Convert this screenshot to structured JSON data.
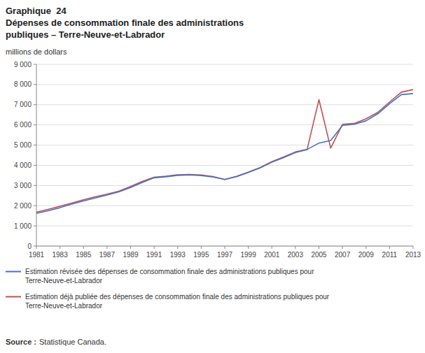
{
  "chart_data": {
    "type": "line",
    "title": "Graphique  24",
    "subtitle": "Dépenses de consommation finale des administrations\npubliques – Terre-Neuve-et-Labrador",
    "y_label": "millions de dollars",
    "annotations": [
      "Source :",
      "Statistique Canada."
    ],
    "x": [
      1981,
      1982,
      1983,
      1984,
      1985,
      1986,
      1987,
      1988,
      1989,
      1990,
      1991,
      1992,
      1993,
      1994,
      1995,
      1996,
      1997,
      1998,
      1999,
      2000,
      2001,
      2002,
      2003,
      2004,
      2005,
      2006,
      2007,
      2008,
      2009,
      2010,
      2011,
      2012,
      2013
    ],
    "series": [
      {
        "name": "Estimation révisée des dépenses de consommation finale des administrations publiques pour\nTerre-Neuve-et-Labrador",
        "color": "#4472C4",
        "values": [
          1620,
          1750,
          1900,
          2080,
          2230,
          2380,
          2530,
          2680,
          2900,
          3150,
          3380,
          3430,
          3500,
          3520,
          3490,
          3420,
          3300,
          3440,
          3640,
          3870,
          4150,
          4380,
          4630,
          4780,
          5100,
          5230,
          5970,
          6030,
          6200,
          6550,
          7050,
          7500,
          7550
        ]
      },
      {
        "name": "Estimation déjà publiée des dépenses de consommation finale des administrations publiques pour\nTerre-Neuve-et-Labrador",
        "color": "#C0504D",
        "values": [
          1680,
          1820,
          1970,
          2130,
          2290,
          2440,
          2570,
          2720,
          2950,
          3200,
          3410,
          3460,
          3530,
          3550,
          3520,
          3440,
          3300,
          3450,
          3660,
          3890,
          4180,
          4410,
          4660,
          4790,
          7250,
          4850,
          6030,
          6070,
          6300,
          6620,
          7130,
          7620,
          7750
        ]
      }
    ],
    "xlim": [
      1981,
      2013
    ],
    "xticks": [
      1981,
      1983,
      1985,
      1987,
      1989,
      1991,
      1993,
      1995,
      1997,
      1999,
      2001,
      2003,
      2005,
      2007,
      2009,
      2011,
      2013
    ],
    "ylim": [
      0,
      9000
    ],
    "yticks": [
      0,
      {
        "value": 1000,
        "label": "1 000"
      },
      {
        "value": 2000,
        "label": "2 000"
      },
      {
        "value": 3000,
        "label": "3 000"
      },
      {
        "value": 4000,
        "label": "4 000"
      },
      {
        "value": 5000,
        "label": "5 000"
      },
      {
        "value": 6000,
        "label": "6 000"
      },
      {
        "value": 7000,
        "label": "7 000"
      },
      {
        "value": 8000,
        "label": "8 000"
      },
      {
        "value": 9000,
        "label": "9 000"
      }
    ],
    "grid": true,
    "legend": "bottom-left"
  }
}
